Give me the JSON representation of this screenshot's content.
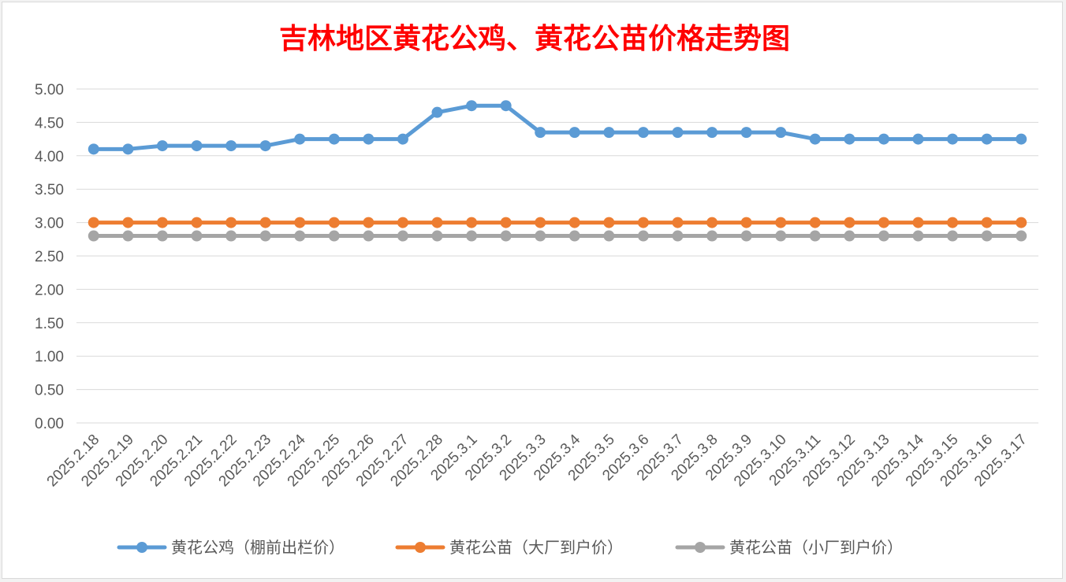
{
  "chart_data": {
    "type": "line",
    "title": "吉林地区黄花公鸡、黄花公苗价格走势图",
    "xlabel": "",
    "ylabel": "",
    "ylim": [
      0,
      5
    ],
    "yticks": [
      "0.00",
      "0.50",
      "1.00",
      "1.50",
      "2.00",
      "2.50",
      "3.00",
      "3.50",
      "4.00",
      "4.50",
      "5.00"
    ],
    "grid": true,
    "legend_position": "bottom",
    "categories": [
      "2025.2.18",
      "2025.2.19",
      "2025.2.20",
      "2025.2.21",
      "2025.2.22",
      "2025.2.23",
      "2025.2.24",
      "2025.2.25",
      "2025.2.26",
      "2025.2.27",
      "2025.2.28",
      "2025.3.1",
      "2025.3.2",
      "2025.3.3",
      "2025.3.4",
      "2025.3.5",
      "2025.3.6",
      "2025.3.7",
      "2025.3.8",
      "2025.3.9",
      "2025.3.10",
      "2025.3.11",
      "2025.3.12",
      "2025.3.13",
      "2025.3.14",
      "2025.3.15",
      "2025.3.16",
      "2025.3.17"
    ],
    "series": [
      {
        "name": "黄花公鸡（棚前出栏价）",
        "color": "#5b9bd5",
        "values": [
          4.1,
          4.1,
          4.15,
          4.15,
          4.15,
          4.15,
          4.25,
          4.25,
          4.25,
          4.25,
          4.65,
          4.75,
          4.75,
          4.35,
          4.35,
          4.35,
          4.35,
          4.35,
          4.35,
          4.35,
          4.35,
          4.25,
          4.25,
          4.25,
          4.25,
          4.25,
          4.25,
          4.25
        ]
      },
      {
        "name": "黄花公苗（大厂到户价）",
        "color": "#ed7d31",
        "values": [
          3.0,
          3.0,
          3.0,
          3.0,
          3.0,
          3.0,
          3.0,
          3.0,
          3.0,
          3.0,
          3.0,
          3.0,
          3.0,
          3.0,
          3.0,
          3.0,
          3.0,
          3.0,
          3.0,
          3.0,
          3.0,
          3.0,
          3.0,
          3.0,
          3.0,
          3.0,
          3.0,
          3.0
        ]
      },
      {
        "name": "黄花公苗（小厂到户价）",
        "color": "#a5a5a5",
        "values": [
          2.8,
          2.8,
          2.8,
          2.8,
          2.8,
          2.8,
          2.8,
          2.8,
          2.8,
          2.8,
          2.8,
          2.8,
          2.8,
          2.8,
          2.8,
          2.8,
          2.8,
          2.8,
          2.8,
          2.8,
          2.8,
          2.8,
          2.8,
          2.8,
          2.8,
          2.8,
          2.8,
          2.8
        ]
      }
    ]
  }
}
